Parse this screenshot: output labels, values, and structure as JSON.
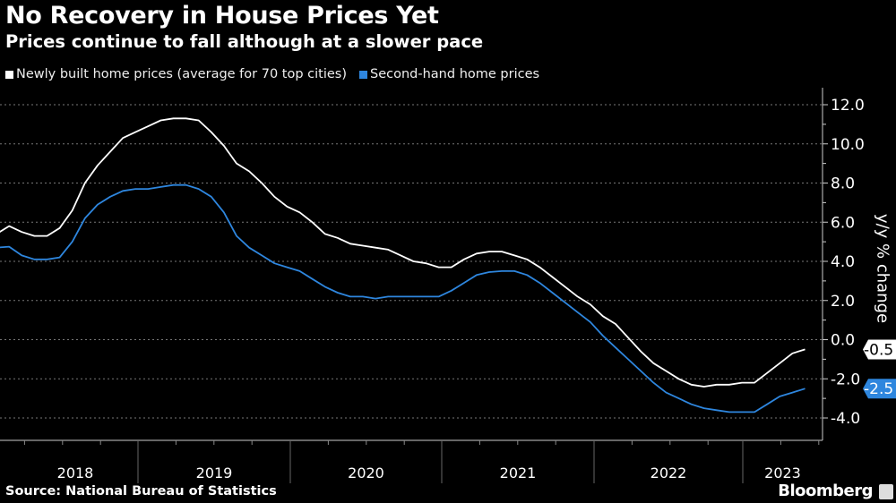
{
  "header": {
    "title": "No Recovery in House Prices Yet",
    "subtitle": "Prices continue to fall although at a slower pace"
  },
  "footer": {
    "source": "Source: National Bureau of Statistics",
    "brand": "Bloomberg"
  },
  "chart_data": {
    "type": "line",
    "title": "No Recovery in House Prices Yet",
    "subtitle": "Prices continue to fall although at a slower pace",
    "ylabel": "y/y % change",
    "xlabel": "",
    "ylim": [
      -5,
      13
    ],
    "yticks": [
      "12.0",
      "10.0",
      "8.0",
      "6.0",
      "4.0",
      "2.0",
      "0.0",
      "-2.0",
      "-4.0"
    ],
    "ytick_values": [
      12,
      10,
      8,
      6,
      4,
      2,
      0,
      -2,
      -4
    ],
    "xticks": [
      "2018",
      "2019",
      "2020",
      "2021",
      "2022",
      "2023"
    ],
    "grid": true,
    "legend": "top-left",
    "axis_side": "right",
    "start_month": "2018-02",
    "end_month": "2023-06",
    "series": [
      {
        "name": "Newly built home prices (average for 70 top cities)",
        "color": "#ffffff",
        "last_label": "-0.5",
        "values": [
          5.4,
          5.8,
          5.5,
          5.3,
          5.3,
          5.7,
          6.6,
          8.0,
          8.9,
          9.6,
          10.3,
          10.6,
          10.9,
          11.2,
          11.3,
          11.3,
          11.2,
          10.6,
          9.9,
          9.0,
          8.6,
          8.0,
          7.3,
          6.8,
          6.5,
          6.0,
          5.4,
          5.2,
          4.9,
          4.8,
          4.7,
          4.6,
          4.3,
          4.0,
          3.9,
          3.7,
          3.7,
          4.1,
          4.4,
          4.5,
          4.5,
          4.3,
          4.1,
          3.7,
          3.2,
          2.7,
          2.2,
          1.8,
          1.2,
          0.8,
          0.1,
          -0.6,
          -1.2,
          -1.6,
          -2.0,
          -2.3,
          -2.4,
          -2.3,
          -2.3,
          -2.2,
          -2.2,
          -1.7,
          -1.2,
          -0.7,
          -0.5
        ]
      },
      {
        "name": "Second-hand home prices",
        "color": "#2e86de",
        "last_label": "-2.5",
        "values": [
          4.7,
          4.75,
          4.3,
          4.1,
          4.1,
          4.2,
          5.0,
          6.2,
          6.9,
          7.3,
          7.6,
          7.7,
          7.7,
          7.8,
          7.9,
          7.9,
          7.7,
          7.3,
          6.5,
          5.3,
          4.7,
          4.3,
          3.9,
          3.7,
          3.5,
          3.1,
          2.7,
          2.4,
          2.2,
          2.2,
          2.1,
          2.2,
          2.2,
          2.2,
          2.2,
          2.2,
          2.5,
          2.9,
          3.3,
          3.45,
          3.5,
          3.5,
          3.3,
          2.9,
          2.4,
          1.9,
          1.4,
          0.9,
          0.2,
          -0.4,
          -1.0,
          -1.6,
          -2.2,
          -2.7,
          -3.0,
          -3.3,
          -3.5,
          -3.6,
          -3.7,
          -3.7,
          -3.7,
          -3.3,
          -2.9,
          -2.7,
          -2.5
        ]
      }
    ]
  }
}
